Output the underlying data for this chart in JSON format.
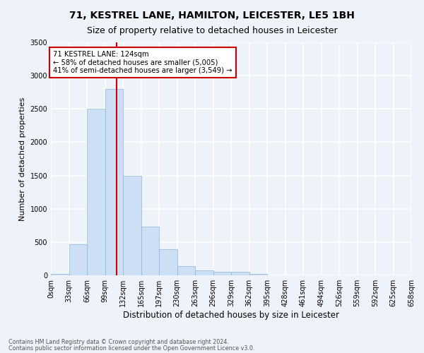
{
  "title1": "71, KESTREL LANE, HAMILTON, LEICESTER, LE5 1BH",
  "title2": "Size of property relative to detached houses in Leicester",
  "xlabel": "Distribution of detached houses by size in Leicester",
  "ylabel": "Number of detached properties",
  "bar_color": "#ccdff5",
  "bar_edge_color": "#8ab4d8",
  "bar_values": [
    20,
    470,
    2500,
    2800,
    1500,
    730,
    390,
    140,
    70,
    50,
    50,
    20,
    0,
    0,
    0,
    0,
    0,
    0,
    0,
    0
  ],
  "bar_labels": [
    "0sqm",
    "33sqm",
    "66sqm",
    "99sqm",
    "132sqm",
    "165sqm",
    "197sqm",
    "230sqm",
    "263sqm",
    "296sqm",
    "329sqm",
    "362sqm",
    "395sqm",
    "428sqm",
    "461sqm",
    "494sqm",
    "526sqm",
    "559sqm",
    "592sqm",
    "625sqm",
    "658sqm"
  ],
  "vline_x": 3.63,
  "vline_color": "#cc0000",
  "annotation_text": "71 KESTREL LANE: 124sqm\n← 58% of detached houses are smaller (5,005)\n41% of semi-detached houses are larger (3,549) →",
  "annotation_box_color": "#ffffff",
  "annotation_box_edge_color": "#cc0000",
  "ylim": [
    0,
    3500
  ],
  "yticks": [
    0,
    500,
    1000,
    1500,
    2000,
    2500,
    3000,
    3500
  ],
  "footer1": "Contains HM Land Registry data © Crown copyright and database right 2024.",
  "footer2": "Contains public sector information licensed under the Open Government Licence v3.0.",
  "bg_color": "#eef2f9",
  "plot_bg_color": "#eef2f9",
  "grid_color": "#ffffff",
  "title1_fontsize": 10,
  "title2_fontsize": 9,
  "xlabel_fontsize": 8.5,
  "ylabel_fontsize": 8,
  "tick_fontsize": 7
}
